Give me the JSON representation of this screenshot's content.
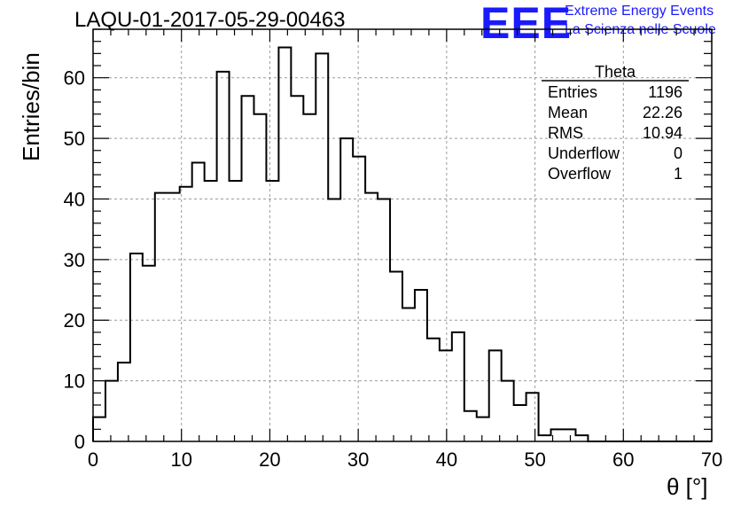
{
  "header": {
    "run_title": "LAQU-01-2017-05-29-00463",
    "logo_mark": "EEE",
    "logo_line1": "Extreme Energy Events",
    "logo_line2": "La Scienza nelle Scuole",
    "logo_color": "#1a1aff"
  },
  "stats_box": {
    "title": "Theta",
    "rows": [
      {
        "label": "Entries",
        "value": "1196"
      },
      {
        "label": "Mean",
        "value": "22.26"
      },
      {
        "label": "RMS",
        "value": "10.94"
      },
      {
        "label": "Underflow",
        "value": "0"
      },
      {
        "label": "Overflow",
        "value": "1"
      }
    ]
  },
  "chart_data": {
    "type": "bar",
    "style": "step-histogram",
    "xlabel": "θ [°]",
    "ylabel": "Entries/bin",
    "xlim": [
      0,
      70
    ],
    "ylim": [
      0,
      68
    ],
    "x_ticks": [
      0,
      10,
      20,
      30,
      40,
      50,
      60,
      70
    ],
    "y_ticks": [
      0,
      10,
      20,
      30,
      40,
      50,
      60
    ],
    "grid": true,
    "bin_width": 1.4,
    "values": [
      4,
      10,
      13,
      31,
      29,
      41,
      41,
      42,
      46,
      43,
      61,
      43,
      57,
      54,
      43,
      65,
      57,
      54,
      64,
      40,
      50,
      47,
      41,
      40,
      28,
      22,
      25,
      17,
      15,
      18,
      5,
      4,
      15,
      10,
      6,
      8,
      1,
      2,
      2,
      1,
      0,
      0,
      0,
      0,
      0,
      0,
      0,
      0,
      0,
      0
    ],
    "line_color": "#000000",
    "grid_color": "#9a9a9a"
  }
}
